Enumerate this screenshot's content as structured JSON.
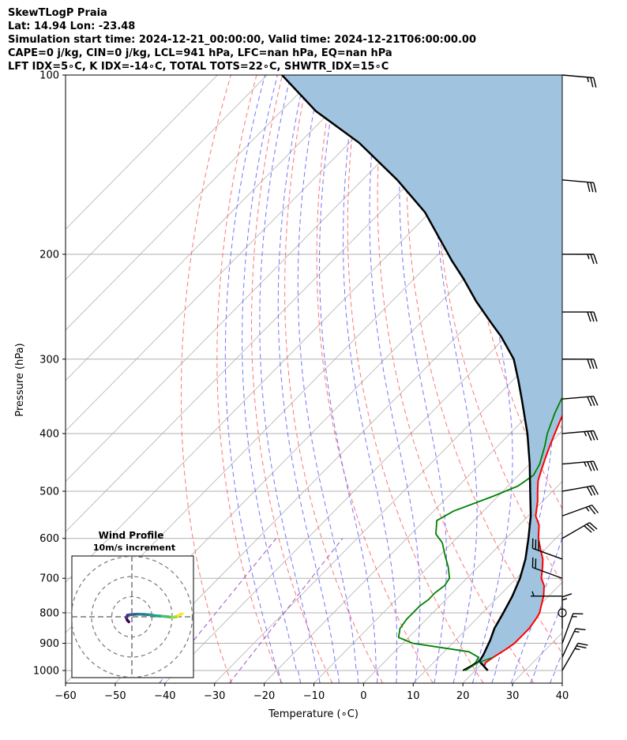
{
  "header": {
    "line1": "SkewTLogP Praia",
    "line2": "Lat: 14.94   Lon: -23.48",
    "line3": "Simulation start time: 2024-12-21_00:00:00, Valid time: 2024-12-21T06:00:00.00",
    "line4": "CAPE=0 j/kg, CIN=0 j/kg, LCL=941 hPa, LFC=nan hPa, EQ=nan hPa",
    "line5": "LFT IDX=5∘C, K IDX=-14∘C, TOTAL TOTS=22∘C, SHWTR_IDX=15∘C"
  },
  "chart_data": {
    "type": "skew-t",
    "xlabel": "Temperature (∘C)",
    "ylabel": "Pressure (hPa)",
    "xlim": [
      -60,
      40
    ],
    "ylim": [
      1050,
      100
    ],
    "x_ticks": [
      "−60",
      "−50",
      "−40",
      "−30",
      "−20",
      "−10",
      "0",
      "10",
      "20",
      "30",
      "40"
    ],
    "y_ticks": [
      "100",
      "200",
      "300",
      "400",
      "500",
      "600",
      "700",
      "800",
      "900",
      "1000"
    ],
    "y_tick_values": [
      100,
      200,
      300,
      400,
      500,
      600,
      700,
      800,
      900,
      1000
    ],
    "grid": true,
    "colors": {
      "temperature": "#ff0000",
      "dewpoint": "#008000",
      "parcel": "#000000",
      "shade": "#a0c4df",
      "dry_adiabat": "#ff6666",
      "moist_adiabat": "#6666ff",
      "mixing_ratio": "#a050c0",
      "isotherm": "#b0b0b0"
    },
    "series": [
      {
        "key": "temperature",
        "points": [
          [
            22.5,
            1000
          ],
          [
            21,
            985
          ],
          [
            20.5,
            970
          ],
          [
            21,
            950
          ],
          [
            22,
            920
          ],
          [
            22.5,
            900
          ],
          [
            22.5,
            870
          ],
          [
            22.5,
            850
          ],
          [
            22,
            820
          ],
          [
            21.5,
            800
          ],
          [
            20.5,
            780
          ],
          [
            19,
            750
          ],
          [
            17,
            720
          ],
          [
            15,
            700
          ],
          [
            13,
            670
          ],
          [
            11.5,
            650
          ],
          [
            8.5,
            620
          ],
          [
            6.5,
            600
          ],
          [
            4,
            570
          ],
          [
            1.5,
            550
          ],
          [
            -1,
            520
          ],
          [
            -3,
            500
          ],
          [
            -5,
            480
          ],
          [
            -6.5,
            460
          ],
          [
            -8,
            440
          ],
          [
            -9.5,
            420
          ],
          [
            -11,
            400
          ],
          [
            -12.5,
            380
          ],
          [
            -14,
            360
          ],
          [
            -15.5,
            340
          ],
          [
            -17.5,
            320
          ],
          [
            -19.5,
            300
          ],
          [
            -21.5,
            290
          ],
          [
            -23.5,
            280
          ],
          [
            -27,
            260
          ],
          [
            -30.5,
            240
          ],
          [
            -35.5,
            220
          ],
          [
            -40,
            200
          ],
          [
            -44,
            185
          ],
          [
            -48.5,
            170
          ],
          [
            -52,
            160
          ],
          [
            -55,
            155
          ],
          [
            -59.5,
            150
          ],
          [
            -62.5,
            140
          ],
          [
            -63,
            130
          ],
          [
            -65,
            120
          ],
          [
            -68,
            110
          ],
          [
            -70,
            100
          ]
        ]
      },
      {
        "key": "dewpoint",
        "points": [
          [
            18,
            1000
          ],
          [
            18.5,
            970
          ],
          [
            18,
            950
          ],
          [
            15,
            930
          ],
          [
            2,
            900
          ],
          [
            -2,
            880
          ],
          [
            -3.5,
            850
          ],
          [
            -4,
            820
          ],
          [
            -4,
            800
          ],
          [
            -4,
            780
          ],
          [
            -3.5,
            760
          ],
          [
            -3.5,
            740
          ],
          [
            -3,
            720
          ],
          [
            -3.5,
            700
          ],
          [
            -6,
            670
          ],
          [
            -9,
            640
          ],
          [
            -12,
            610
          ],
          [
            -15,
            590
          ],
          [
            -17.5,
            560
          ],
          [
            -16,
            540
          ],
          [
            -11,
            510
          ],
          [
            -8,
            490
          ],
          [
            -7,
            470
          ],
          [
            -8,
            450
          ],
          [
            -10.5,
            420
          ],
          [
            -12.5,
            400
          ],
          [
            -15,
            370
          ],
          [
            -16.5,
            350
          ],
          [
            -16.5,
            330
          ],
          [
            -15,
            310
          ],
          [
            -14,
            300
          ],
          [
            -14.5,
            290
          ],
          [
            -16.5,
            280
          ],
          [
            -21,
            260
          ],
          [
            -30,
            245
          ],
          [
            -32,
            240
          ],
          [
            -34,
            230
          ],
          [
            -36,
            220
          ],
          [
            -39,
            200
          ],
          [
            -42.5,
            185
          ],
          [
            -46,
            175
          ],
          [
            -50,
            165
          ],
          [
            -54,
            160
          ],
          [
            -57,
            155
          ],
          [
            -59,
            150
          ],
          [
            -61.5,
            140
          ],
          [
            -63.5,
            130
          ],
          [
            -66,
            120
          ],
          [
            -68.5,
            110
          ],
          [
            -70.5,
            100
          ]
        ]
      },
      {
        "key": "parcel",
        "points": [
          [
            22.5,
            1000
          ],
          [
            19,
            965
          ],
          [
            18.5,
            941
          ],
          [
            17,
            890
          ],
          [
            15.5,
            850
          ],
          [
            14.2,
            800
          ],
          [
            12.7,
            750
          ],
          [
            10.7,
            700
          ],
          [
            8,
            650
          ],
          [
            4.5,
            600
          ],
          [
            0.5,
            550
          ],
          [
            -4.5,
            500
          ],
          [
            -10,
            450
          ],
          [
            -16.5,
            400
          ],
          [
            -24.5,
            350
          ],
          [
            -29,
            325
          ],
          [
            -34,
            300
          ],
          [
            -41,
            275
          ],
          [
            -46,
            260
          ],
          [
            -53,
            240
          ],
          [
            -60,
            220
          ],
          [
            -66,
            205
          ],
          [
            -70,
            195
          ],
          [
            -81,
            170
          ],
          [
            -93,
            150
          ],
          [
            -108,
            130
          ],
          [
            -123,
            115
          ],
          [
            -137,
            100
          ]
        ]
      }
    ],
    "dewpoint_extra": [
      [
        18,
        1000
      ],
      [
        19,
        970
      ],
      [
        21,
        950
      ]
    ],
    "parcel_extra": [
      [
        19,
        965
      ],
      [
        17.5,
        1000
      ]
    ],
    "wind_barbs": {
      "pressures": [
        100,
        150,
        200,
        250,
        300,
        350,
        400,
        450,
        500,
        550,
        600,
        650,
        700,
        750,
        800,
        850,
        900,
        950,
        1000
      ],
      "speeds_kt": [
        25,
        30,
        25,
        30,
        30,
        30,
        35,
        35,
        30,
        25,
        30,
        30,
        20,
        5,
        0,
        15,
        15,
        15,
        25
      ],
      "directions_deg": [
        95,
        95,
        90,
        90,
        90,
        85,
        85,
        85,
        80,
        70,
        60,
        290,
        290,
        270,
        260,
        0,
        20,
        25,
        30
      ]
    },
    "hodograph": {
      "title": "Wind Profile",
      "subtitle": "10m/s increment",
      "rings_ms": [
        10,
        20,
        30
      ],
      "points": [
        [
          -1.5,
          -2.5
        ],
        [
          -2.2,
          -1.8
        ],
        [
          -2.8,
          -0.5
        ],
        [
          -2.2,
          0.8
        ],
        [
          -1,
          1
        ],
        [
          1,
          1.2
        ],
        [
          3,
          1.3
        ],
        [
          6,
          1.2
        ],
        [
          9,
          1.0
        ],
        [
          12,
          0.5
        ],
        [
          15,
          0.3
        ],
        [
          18,
          0
        ],
        [
          20,
          -0.3
        ],
        [
          22,
          0
        ],
        [
          23,
          0.5
        ],
        [
          24,
          1.2
        ],
        [
          25,
          1.5
        ]
      ]
    }
  }
}
